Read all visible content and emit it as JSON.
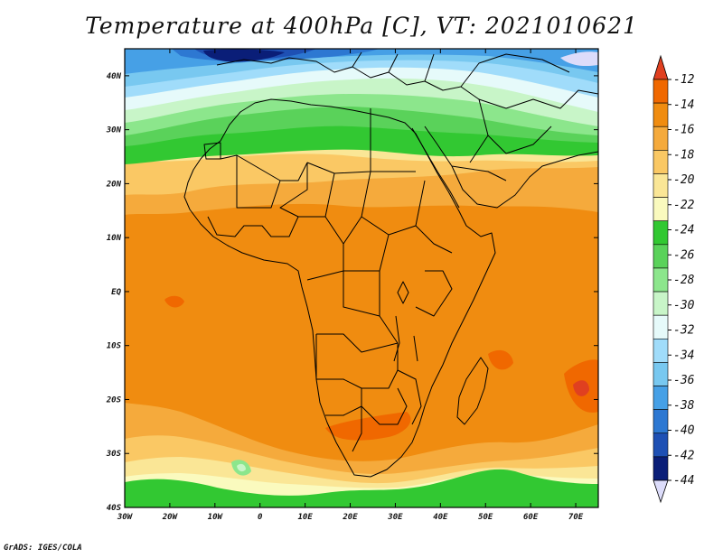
{
  "title": "Temperature at 400hPa [C], VT: 2021010621",
  "credit": "GrADS: IGES/COLA",
  "map": {
    "lon_range": [
      -30,
      75
    ],
    "lat_range": [
      -40,
      45
    ],
    "lat_ticks": [
      {
        "value": 40,
        "label": "40N"
      },
      {
        "value": 30,
        "label": "30N"
      },
      {
        "value": 20,
        "label": "20N"
      },
      {
        "value": 10,
        "label": "10N"
      },
      {
        "value": 0,
        "label": "EQ"
      },
      {
        "value": -10,
        "label": "10S"
      },
      {
        "value": -20,
        "label": "20S"
      },
      {
        "value": -30,
        "label": "30S"
      },
      {
        "value": -40,
        "label": "40S"
      }
    ],
    "lon_ticks": [
      {
        "value": -30,
        "label": "30W"
      },
      {
        "value": -20,
        "label": "20W"
      },
      {
        "value": -10,
        "label": "10W"
      },
      {
        "value": 0,
        "label": "0"
      },
      {
        "value": 10,
        "label": "10E"
      },
      {
        "value": 20,
        "label": "20E"
      },
      {
        "value": 30,
        "label": "30E"
      },
      {
        "value": 40,
        "label": "40E"
      },
      {
        "value": 50,
        "label": "50E"
      },
      {
        "value": 60,
        "label": "60E"
      },
      {
        "value": 70,
        "label": "70E"
      }
    ]
  },
  "colorbar": {
    "labels": [
      "-12",
      "-14",
      "-16",
      "-18",
      "-20",
      "-22",
      "-24",
      "-26",
      "-28",
      "-30",
      "-32",
      "-34",
      "-36",
      "-38",
      "-40",
      "-42",
      "-44"
    ],
    "colors": [
      "#e04020",
      "#f06800",
      "#f08c10",
      "#f5aa3c",
      "#fac864",
      "#fae696",
      "#fafabe",
      "#32c832",
      "#5ad25a",
      "#8ce68c",
      "#c8f5c8",
      "#e6fafa",
      "#a0dcfa",
      "#78c8f0",
      "#46a0e6",
      "#2d78d2",
      "#1e50b4",
      "#0a1e78",
      "#dcdcfa"
    ]
  }
}
